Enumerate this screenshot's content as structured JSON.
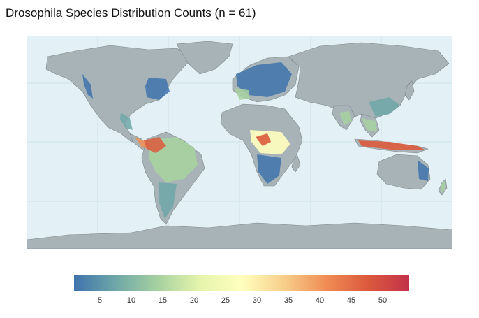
{
  "title": "Drosophila Species Distribution Counts (n = 61)",
  "legend": {
    "min": 1,
    "max": 54,
    "ticks": [
      "5",
      "10",
      "15",
      "20",
      "25",
      "30",
      "35",
      "40",
      "45",
      "50"
    ],
    "colors": [
      "#3f73ad",
      "#6fa7a8",
      "#a6d1a0",
      "#e5f4ab",
      "#ffffbe",
      "#f8cf8b",
      "#f08e55",
      "#dc5a3d",
      "#c3324a"
    ]
  },
  "map": {
    "ocean_color": "#e3f1f6",
    "land_color": "#a8b3b7",
    "graticule_color": "#cfe2e8"
  }
}
